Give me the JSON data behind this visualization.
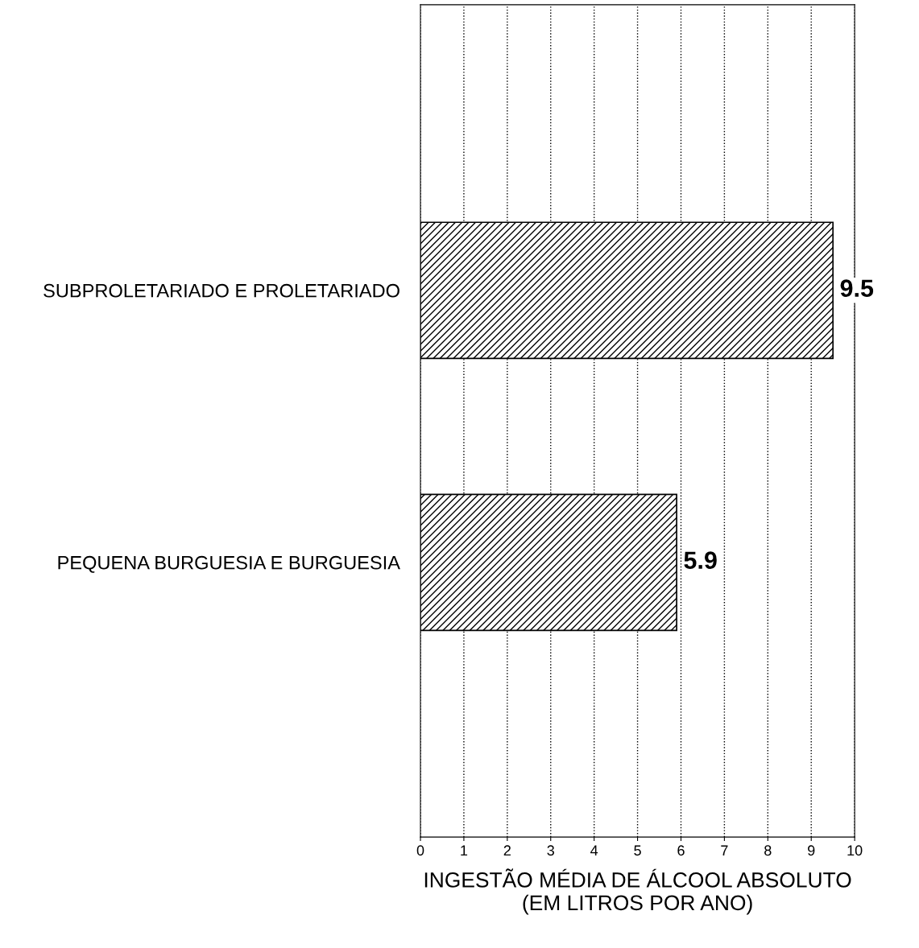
{
  "chart_data": {
    "type": "bar",
    "orientation": "horizontal",
    "categories": [
      "SUBPROLETARIADO E PROLETARIADO",
      "PEQUENA BURGUESIA E BURGUESIA"
    ],
    "values": [
      9.5,
      5.9
    ],
    "color": "#000000",
    "xlabel": "INGESTÃO MÉDIA DE ÁLCOOL ABSOLUTO\n(EM LITROS POR ANO)",
    "xlim": [
      0,
      10
    ],
    "xticks": [
      0,
      1,
      2,
      3,
      4,
      5,
      6,
      7,
      8,
      9,
      10
    ],
    "grid": "x",
    "data_labels": true,
    "legend": false
  }
}
